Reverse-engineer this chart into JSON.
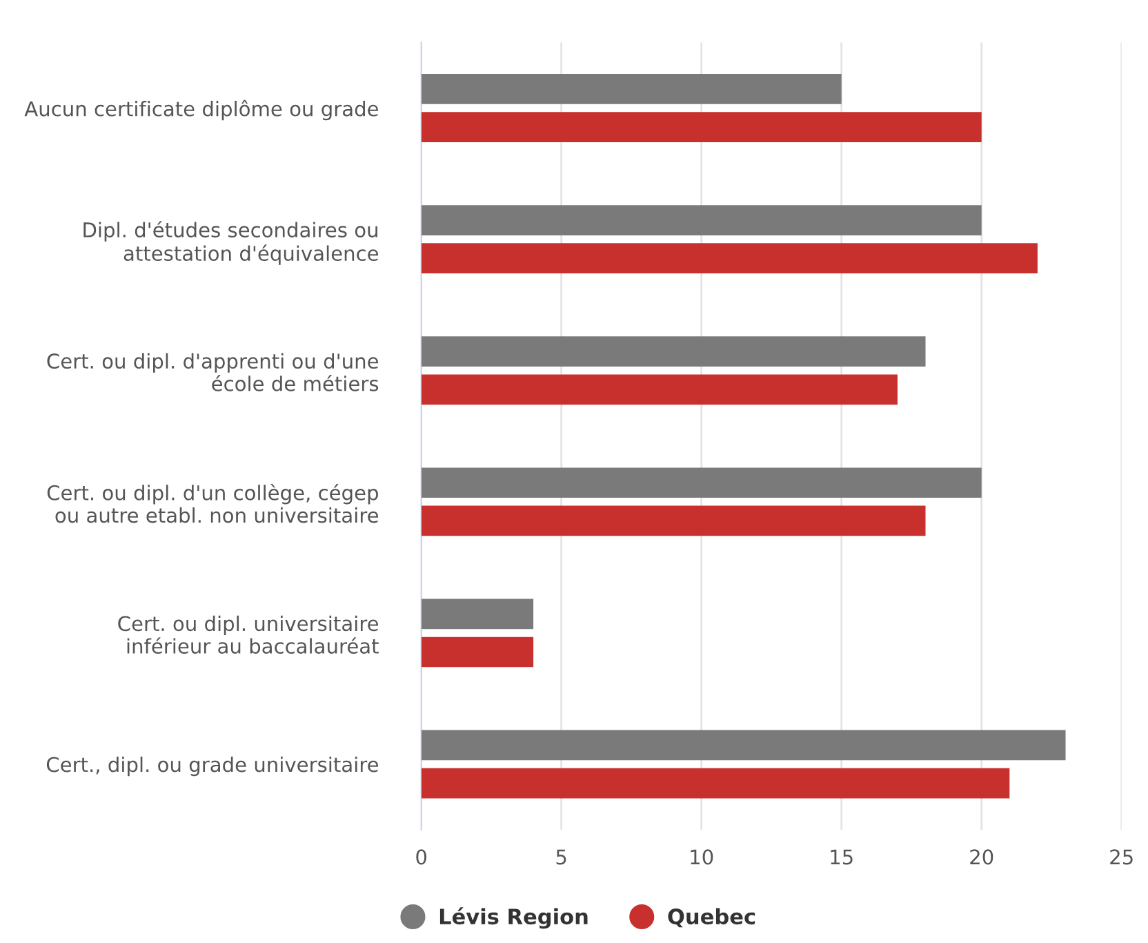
{
  "chart_data": {
    "type": "bar",
    "orientation": "horizontal",
    "categories": [
      "Aucun certificate diplôme ou grade",
      "Dipl. d'études secondaires ou\nattestation d'équivalence",
      "Cert. ou dipl. d'apprenti ou d'une\nécole de métiers",
      "Cert. ou dipl. d'un collège, cégep\nou autre etabl. non universitaire",
      "Cert. ou dipl. universitaire\ninférieur au baccalauréat",
      "Cert., dipl. ou grade universitaire"
    ],
    "series": [
      {
        "name": "Lévis Region",
        "color": "#7a7a7a",
        "values": [
          15,
          20,
          18,
          20,
          4,
          23
        ]
      },
      {
        "name": "Quebec",
        "color": "#c8302e",
        "values": [
          20,
          22,
          17,
          18,
          4,
          21
        ]
      }
    ],
    "xlim": [
      0,
      25
    ],
    "xticks": [
      0,
      5,
      10,
      15,
      20,
      25
    ],
    "grid": "x",
    "legend": "bottom"
  }
}
